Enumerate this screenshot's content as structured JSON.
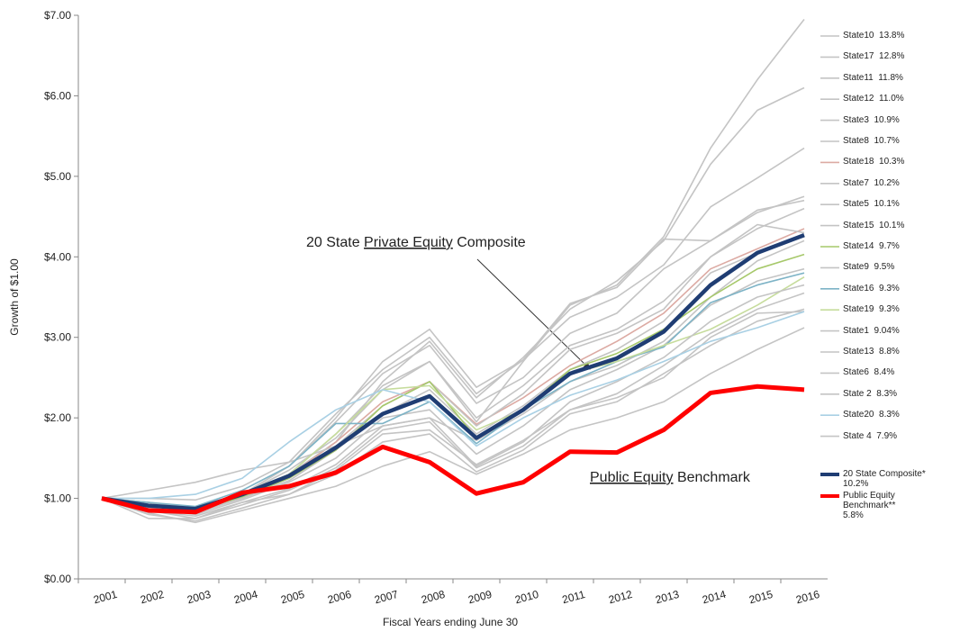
{
  "chart_data": {
    "type": "line",
    "ylabel": "Growth of $1.00",
    "xlabel": "Fiscal Years ending June 30",
    "categories": [
      "2001",
      "2002",
      "2003",
      "2004",
      "2005",
      "2006",
      "2007",
      "2008",
      "2009",
      "2010",
      "2011",
      "2012",
      "2013",
      "2014",
      "2015",
      "2016"
    ],
    "ylim": [
      0,
      7
    ],
    "yticks": [
      {
        "value": 0,
        "label": "$0.00"
      },
      {
        "value": 1,
        "label": "$1.00"
      },
      {
        "value": 2,
        "label": "$2.00"
      },
      {
        "value": 3,
        "label": "$3.00"
      },
      {
        "value": 4,
        "label": "$4.00"
      },
      {
        "value": 5,
        "label": "$5.00"
      },
      {
        "value": 6,
        "label": "$6.00"
      },
      {
        "value": 7,
        "label": "$7.00"
      }
    ],
    "annotations": [
      {
        "parts": [
          "20 State ",
          "Private Equity",
          " Composite"
        ],
        "underline": [
          false,
          true,
          false
        ]
      },
      {
        "parts": [
          "Public Equity",
          " Benchmark"
        ],
        "underline": [
          true,
          false
        ]
      }
    ],
    "series": [
      {
        "name": "State10  13.8%",
        "color": "#c4c4c4",
        "values": [
          1,
          0.95,
          0.88,
          1.05,
          1.35,
          1.75,
          2.35,
          2.7,
          1.95,
          2.7,
          3.4,
          3.65,
          4.25,
          5.35,
          6.2,
          6.95
        ]
      },
      {
        "name": "State17  12.8%",
        "color": "#c4c4c4",
        "values": [
          1,
          0.95,
          0.85,
          1.02,
          1.3,
          1.7,
          2.45,
          2.95,
          2.25,
          2.75,
          3.35,
          3.7,
          4.2,
          5.15,
          5.82,
          6.1
        ]
      },
      {
        "name": "State11  11.8%",
        "color": "#c4c4c4",
        "values": [
          1,
          0.95,
          0.87,
          1.05,
          1.4,
          2.0,
          2.7,
          3.1,
          2.38,
          2.72,
          3.25,
          3.5,
          3.9,
          4.62,
          4.98,
          5.35
        ]
      },
      {
        "name": "State12  11.0%",
        "color": "#c4c4c4",
        "values": [
          1,
          1.0,
          0.98,
          1.15,
          1.45,
          2.05,
          2.6,
          3.0,
          2.3,
          2.72,
          3.42,
          3.62,
          4.22,
          4.2,
          4.55,
          4.75
        ]
      },
      {
        "name": "State3  10.9%",
        "color": "#c4c4c4",
        "values": [
          1,
          0.92,
          0.86,
          1.05,
          1.4,
          1.95,
          2.55,
          2.9,
          2.18,
          2.5,
          3.05,
          3.3,
          3.85,
          4.2,
          4.58,
          4.7
        ]
      },
      {
        "name": "State8  10.7%",
        "color": "#c4c4c4",
        "values": [
          1,
          0.9,
          0.85,
          1.02,
          1.3,
          1.8,
          2.4,
          2.7,
          2.0,
          2.4,
          2.9,
          3.1,
          3.45,
          4.0,
          4.35,
          4.6
        ]
      },
      {
        "name": "State18  10.3%",
        "color": "#dcaaa3",
        "values": [
          1,
          0.9,
          0.84,
          1.03,
          1.28,
          1.7,
          2.2,
          2.45,
          1.92,
          2.25,
          2.65,
          2.95,
          3.3,
          3.85,
          4.1,
          4.35
        ]
      },
      {
        "name": "State7  10.2%",
        "color": "#c4c4c4",
        "values": [
          1,
          0.88,
          0.82,
          1.0,
          1.25,
          1.65,
          2.15,
          2.45,
          1.9,
          2.3,
          2.85,
          3.05,
          3.35,
          4.0,
          4.4,
          4.3
        ]
      },
      {
        "name": "State5  10.1%",
        "color": "#c4c4c4",
        "values": [
          1,
          0.92,
          0.85,
          1.0,
          1.22,
          1.6,
          2.05,
          2.35,
          1.8,
          2.15,
          2.6,
          2.85,
          3.2,
          3.8,
          4.05,
          4.25
        ]
      },
      {
        "name": "State15  10.1%",
        "color": "#c4c4c4",
        "values": [
          1,
          1.1,
          1.2,
          1.35,
          1.45,
          1.65,
          1.9,
          2.0,
          1.72,
          2.05,
          2.45,
          2.65,
          2.95,
          3.5,
          3.95,
          4.2
        ]
      },
      {
        "name": "State14  9.7%",
        "color": "#a6c86a",
        "values": [
          1,
          0.9,
          0.85,
          1.02,
          1.25,
          1.6,
          2.15,
          2.45,
          1.75,
          2.1,
          2.6,
          2.8,
          3.1,
          3.5,
          3.85,
          4.03
        ]
      },
      {
        "name": "State9  9.5%",
        "color": "#c4c4c4",
        "values": [
          1,
          0.88,
          0.8,
          0.98,
          1.2,
          1.5,
          2.0,
          2.1,
          1.55,
          1.9,
          2.35,
          2.6,
          2.9,
          3.4,
          3.7,
          3.85
        ]
      },
      {
        "name": "State16  9.3%",
        "color": "#7db3c6",
        "values": [
          1,
          0.95,
          0.9,
          1.1,
          1.4,
          1.93,
          1.93,
          2.2,
          1.68,
          2.1,
          2.45,
          2.7,
          2.88,
          3.43,
          3.65,
          3.8
        ]
      },
      {
        "name": "State19  9.3%",
        "color": "#c6dc9c",
        "values": [
          1,
          0.92,
          0.88,
          1.05,
          1.3,
          1.8,
          2.35,
          2.4,
          1.85,
          2.1,
          2.55,
          2.7,
          2.9,
          3.1,
          3.4,
          3.75
        ]
      },
      {
        "name": "State1  9.04%",
        "color": "#c4c4c4",
        "values": [
          1,
          0.85,
          0.78,
          0.95,
          1.12,
          1.42,
          1.9,
          2.0,
          1.4,
          1.7,
          2.2,
          2.45,
          2.75,
          3.2,
          3.5,
          3.65
        ]
      },
      {
        "name": "State13  8.8%",
        "color": "#c4c4c4",
        "values": [
          1,
          0.85,
          0.75,
          0.92,
          1.1,
          1.38,
          1.85,
          1.95,
          1.38,
          1.65,
          2.1,
          2.3,
          2.65,
          3.05,
          3.35,
          3.55
        ]
      },
      {
        "name": "State6  8.4%",
        "color": "#c4c4c4",
        "values": [
          1,
          0.8,
          0.72,
          0.88,
          1.05,
          1.3,
          1.7,
          1.8,
          1.33,
          1.6,
          2.05,
          2.2,
          2.55,
          2.9,
          3.2,
          3.35
        ]
      },
      {
        "name": "State 2  8.3%",
        "color": "#c4c4c4",
        "values": [
          1,
          0.75,
          0.75,
          0.95,
          1.05,
          1.35,
          1.8,
          1.85,
          1.42,
          1.72,
          2.1,
          2.25,
          2.5,
          3.0,
          3.3,
          3.32
        ]
      },
      {
        "name": "State20  8.3%",
        "color": "#a9d0e4",
        "values": [
          1,
          1.0,
          1.05,
          1.25,
          1.7,
          2.1,
          2.35,
          2.2,
          1.65,
          2.0,
          2.28,
          2.47,
          2.7,
          2.95,
          3.12,
          3.32
        ]
      },
      {
        "name": "State 4  7.9%",
        "color": "#c4c4c4",
        "values": [
          1,
          0.82,
          0.7,
          0.85,
          1.0,
          1.15,
          1.4,
          1.58,
          1.3,
          1.55,
          1.85,
          2.0,
          2.2,
          2.55,
          2.85,
          3.12
        ]
      },
      {
        "name": "20 State Composite*\n10.2%",
        "color": "#1f3d73",
        "width": 4.5,
        "values": [
          1,
          0.91,
          0.87,
          1.05,
          1.28,
          1.63,
          2.05,
          2.27,
          1.75,
          2.1,
          2.55,
          2.74,
          3.07,
          3.65,
          4.05,
          4.27
        ]
      },
      {
        "name": "Public Equity Benchmark**\n5.8%",
        "color": "#ff0000",
        "width": 5,
        "values": [
          1,
          0.85,
          0.83,
          1.07,
          1.15,
          1.32,
          1.64,
          1.45,
          1.06,
          1.2,
          1.58,
          1.57,
          1.85,
          2.31,
          2.39,
          2.35
        ]
      }
    ]
  }
}
